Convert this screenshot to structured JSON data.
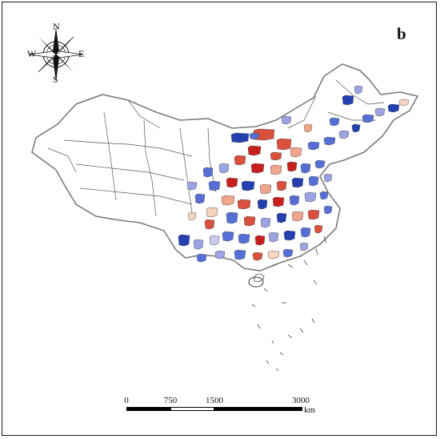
{
  "panel_label": "b",
  "compass": {
    "n": "N",
    "s": "S",
    "e": "E",
    "w": "W",
    "icon": "compass-rose-icon"
  },
  "scale": {
    "ticks": [
      "0",
      "750",
      "1500",
      "3000"
    ],
    "unit": "km"
  },
  "colors": {
    "boundary": "#555555",
    "dark_red": "#c8201e",
    "red": "#d9503c",
    "light_red": "#f1a58a",
    "pale_red": "#f7d2bd",
    "pale_blue": "#c9cbee",
    "light_blue": "#9aa4e4",
    "blue": "#5470d6",
    "dark_blue": "#2240b0",
    "no_data": "#ffffff"
  }
}
